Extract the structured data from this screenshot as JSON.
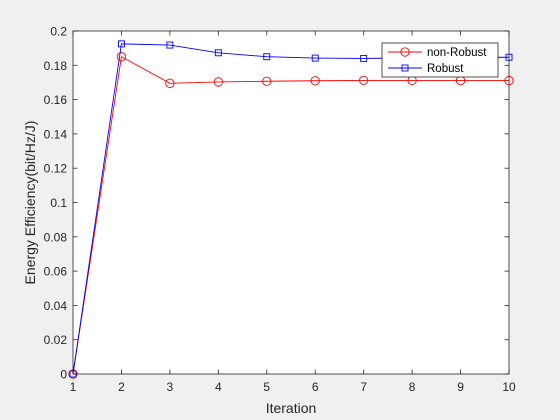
{
  "chart_data": {
    "type": "line",
    "title": "",
    "xlabel": "Iteration",
    "ylabel": "Energy Efficiency(bit/Hz/J)",
    "xlim": [
      1,
      10
    ],
    "ylim": [
      0,
      0.2
    ],
    "x": [
      1,
      2,
      3,
      4,
      5,
      6,
      7,
      8,
      9,
      10
    ],
    "xticks": [
      "1",
      "2",
      "3",
      "4",
      "5",
      "6",
      "7",
      "8",
      "9",
      "10"
    ],
    "yticks": [
      "0",
      "0.02",
      "0.04",
      "0.06",
      "0.08",
      "0.1",
      "0.12",
      "0.14",
      "0.16",
      "0.18",
      "0.2"
    ],
    "ytick_values": [
      0,
      0.02,
      0.04,
      0.06,
      0.08,
      0.1,
      0.12,
      0.14,
      0.16,
      0.18,
      0.2
    ],
    "grid": false,
    "legend_position": "top-right",
    "series": [
      {
        "name": "non-Robust",
        "color": "#ff0000",
        "marker": "circle",
        "values": [
          0,
          0.185,
          0.1695,
          0.1703,
          0.1707,
          0.171,
          0.1712,
          0.1712,
          0.1711,
          0.1711
        ]
      },
      {
        "name": "Robust",
        "color": "#0000ff",
        "marker": "square",
        "values": [
          0,
          0.1925,
          0.1918,
          0.1873,
          0.185,
          0.1842,
          0.184,
          0.1843,
          0.1846,
          0.1847
        ]
      }
    ]
  }
}
